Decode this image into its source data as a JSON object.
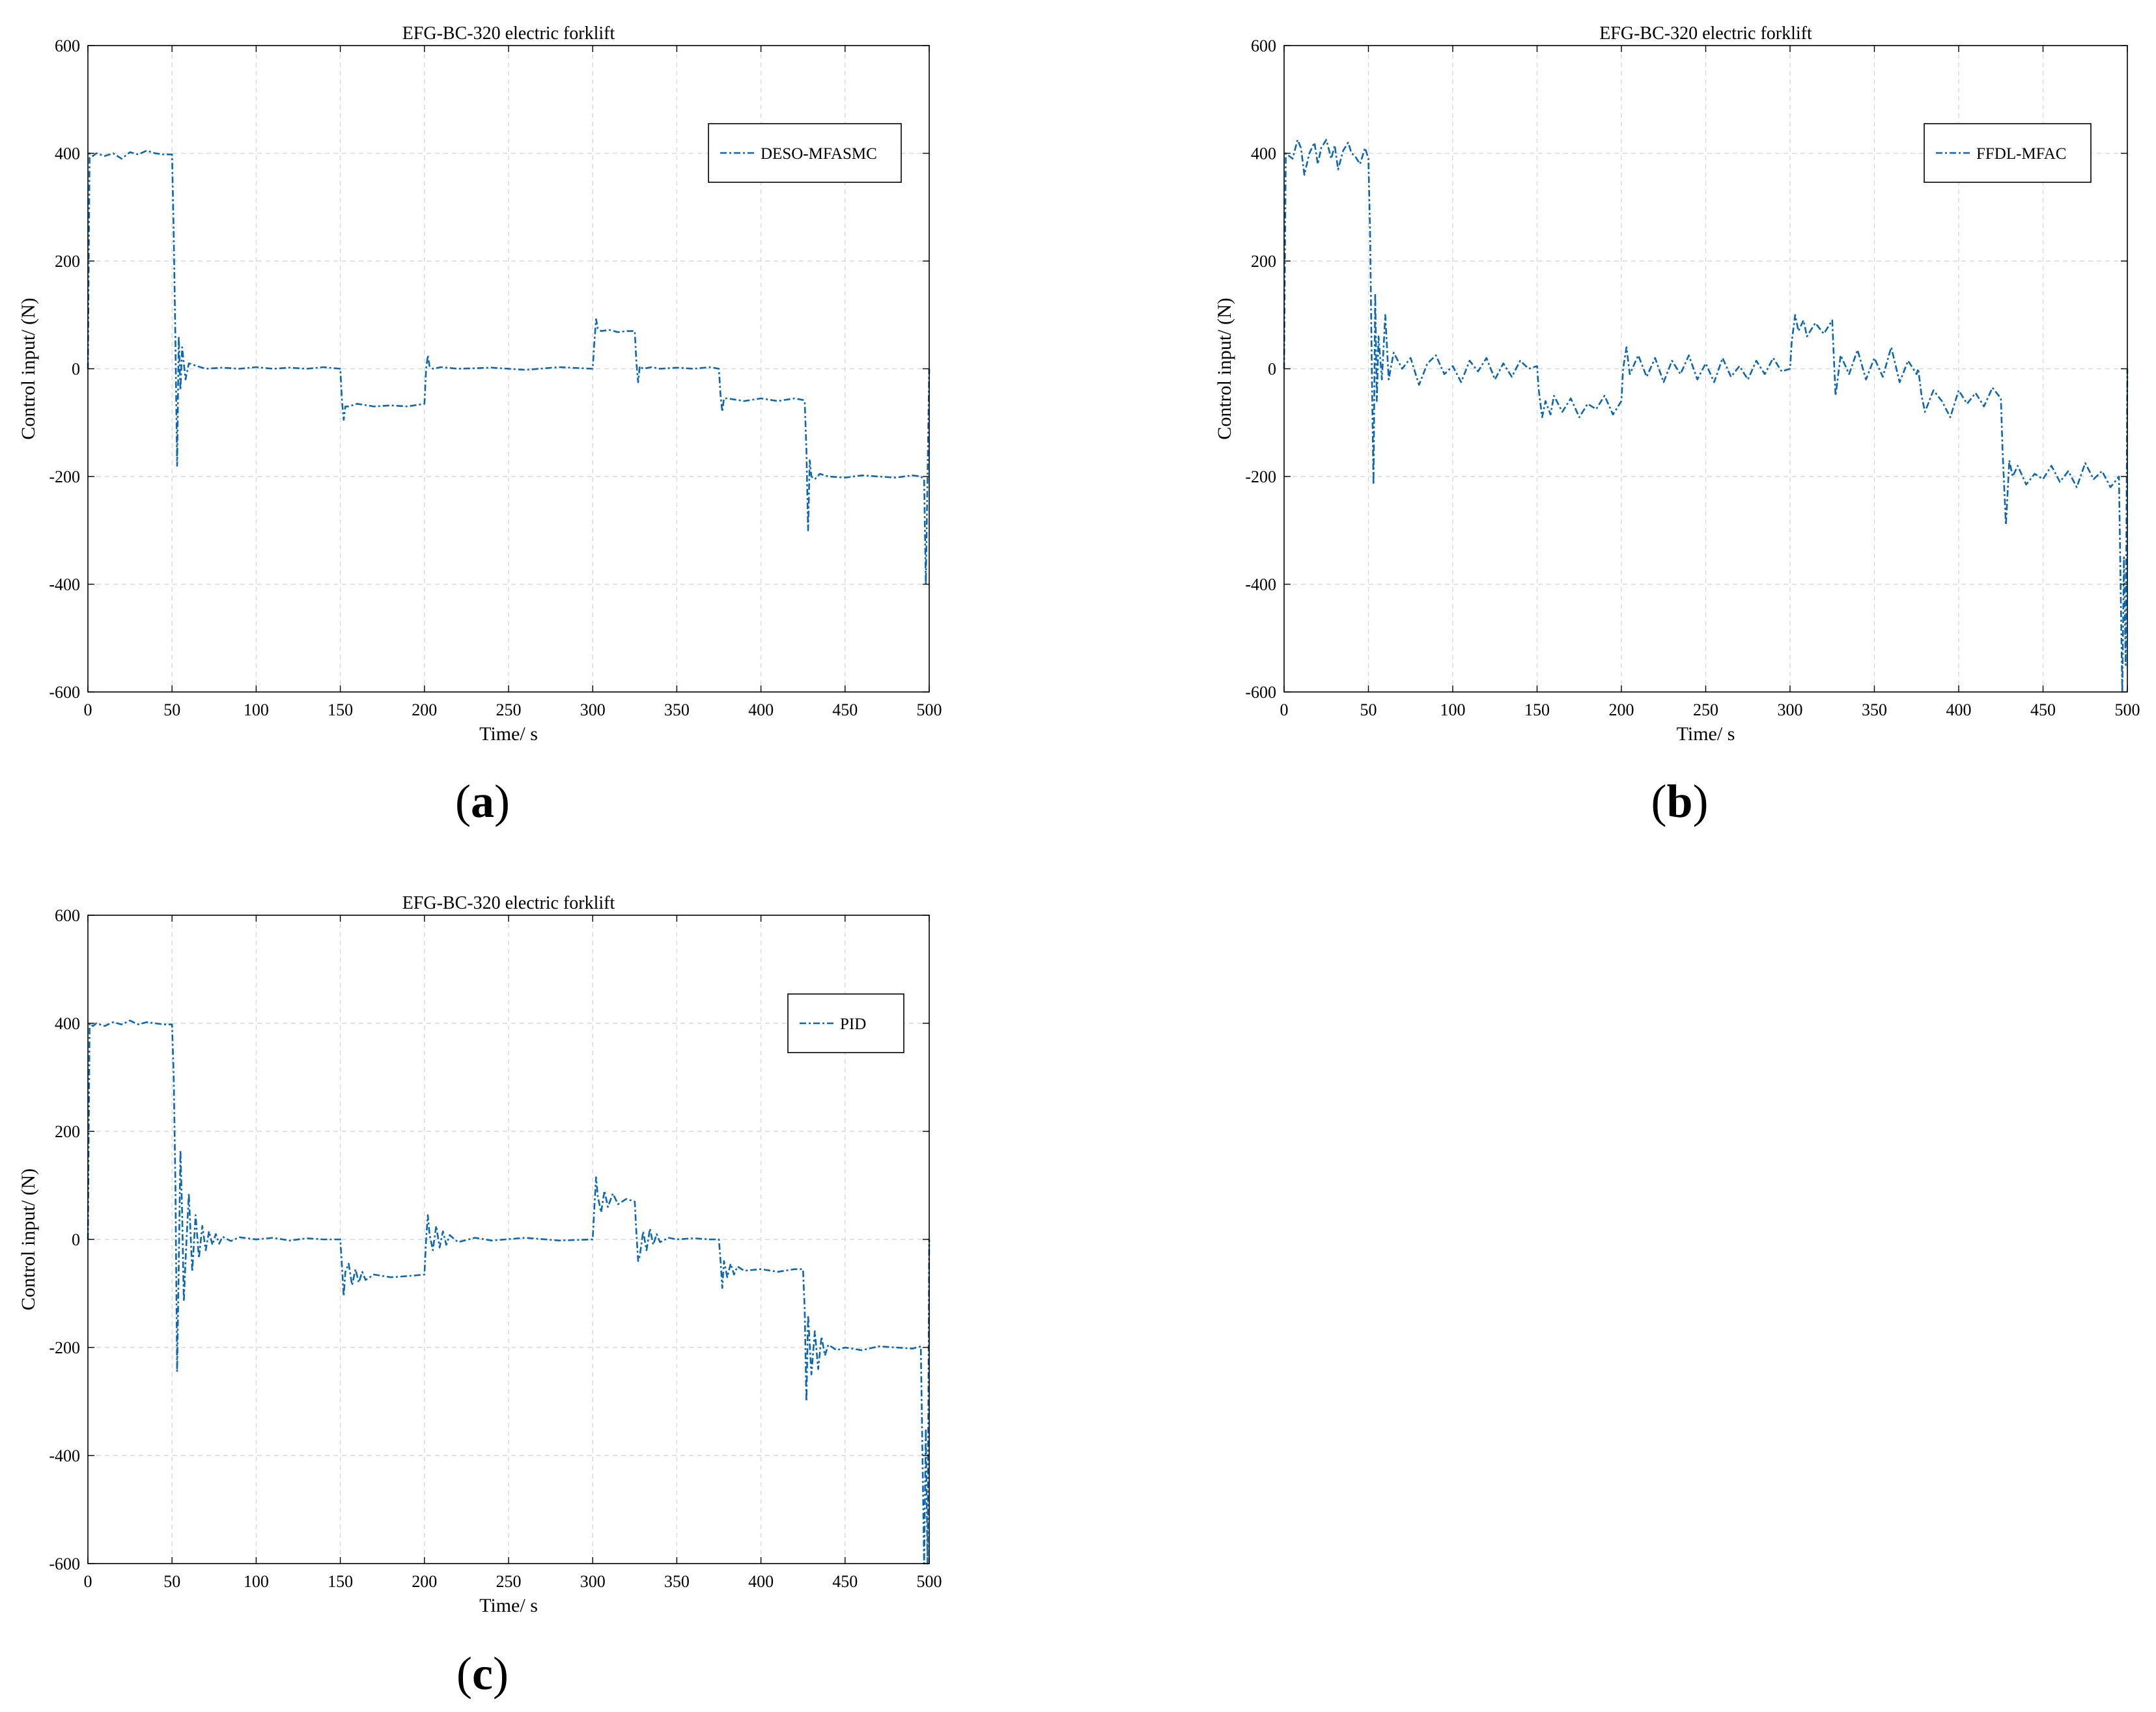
{
  "figure": {
    "line_color": "#0b67b2",
    "grid_color": "#d9d9d9"
  },
  "chart_data": [
    {
      "type": "line",
      "panel_label": "a",
      "title": "EFG-BC-320 electric forklift",
      "xlabel": "Time/ s",
      "ylabel": "Control input/ (N)",
      "xlim": [
        0,
        500
      ],
      "ylim": [
        -600,
        600
      ],
      "xticks": [
        0,
        50,
        100,
        150,
        200,
        250,
        300,
        350,
        400,
        450,
        500
      ],
      "yticks": [
        600,
        400,
        200,
        0,
        -200,
        -400,
        -600
      ],
      "grid": true,
      "legend_position": "top-right",
      "series": [
        {
          "name": "DESO-MFASMC",
          "style": "dash-dot",
          "x": [
            0,
            1,
            3,
            5,
            10,
            15,
            20,
            25,
            30,
            35,
            40,
            45,
            50,
            51,
            52,
            53,
            54,
            55,
            56,
            58,
            60,
            65,
            70,
            80,
            90,
            100,
            110,
            120,
            130,
            140,
            150,
            151,
            152,
            153,
            155,
            160,
            170,
            180,
            190,
            200,
            201,
            202,
            203,
            205,
            210,
            220,
            240,
            260,
            280,
            300,
            301,
            302,
            303,
            305,
            310,
            315,
            320,
            325,
            326,
            327,
            328,
            330,
            335,
            340,
            350,
            360,
            370,
            375,
            376,
            377,
            378,
            380,
            390,
            400,
            410,
            420,
            425,
            426,
            427,
            428,
            429,
            430,
            432,
            435,
            440,
            450,
            460,
            470,
            480,
            490,
            495,
            497,
            498,
            499,
            500
          ],
          "values": [
            0,
            400,
            395,
            400,
            395,
            400,
            390,
            402,
            398,
            405,
            400,
            398,
            398,
            250,
            50,
            -180,
            60,
            -40,
            40,
            -20,
            10,
            5,
            0,
            2,
            0,
            3,
            0,
            2,
            0,
            3,
            0,
            -60,
            -95,
            -70,
            -70,
            -65,
            -70,
            -68,
            -70,
            -65,
            0,
            25,
            5,
            0,
            3,
            0,
            2,
            -2,
            3,
            0,
            50,
            92,
            75,
            70,
            72,
            68,
            70,
            70,
            10,
            -25,
            5,
            0,
            3,
            0,
            2,
            0,
            3,
            0,
            -50,
            -80,
            -55,
            -55,
            -60,
            -55,
            -60,
            -55,
            -58,
            -60,
            -150,
            -300,
            -170,
            -200,
            -205,
            -195,
            -200,
            -202,
            -198,
            -200,
            -202,
            -198,
            -200,
            -205,
            -400,
            -200,
            0
          ]
        }
      ]
    },
    {
      "type": "line",
      "panel_label": "b",
      "title": "EFG-BC-320 electric forklift",
      "xlabel": "Time/ s",
      "ylabel": "Control input/ (N)",
      "xlim": [
        0,
        500
      ],
      "ylim": [
        -600,
        600
      ],
      "xticks": [
        0,
        50,
        100,
        150,
        200,
        250,
        300,
        350,
        400,
        450,
        500
      ],
      "yticks": [
        600,
        400,
        200,
        0,
        -200,
        -400,
        -600
      ],
      "grid": true,
      "legend_position": "top-right",
      "series": [
        {
          "name": "FFDL-MFAC",
          "style": "dash-dot",
          "x": [
            0,
            1,
            3,
            5,
            8,
            10,
            12,
            15,
            18,
            20,
            22,
            25,
            28,
            30,
            32,
            35,
            38,
            40,
            42,
            45,
            48,
            50,
            51,
            52,
            53,
            54,
            55,
            56,
            58,
            60,
            62,
            65,
            70,
            75,
            80,
            85,
            90,
            95,
            100,
            105,
            110,
            115,
            120,
            125,
            130,
            135,
            140,
            145,
            150,
            151,
            153,
            155,
            158,
            160,
            165,
            170,
            175,
            180,
            185,
            190,
            195,
            200,
            201,
            203,
            205,
            210,
            215,
            220,
            225,
            230,
            235,
            240,
            245,
            250,
            255,
            260,
            265,
            270,
            275,
            280,
            285,
            290,
            295,
            300,
            301,
            303,
            305,
            308,
            310,
            315,
            320,
            325,
            326,
            327,
            330,
            335,
            340,
            345,
            350,
            355,
            360,
            365,
            370,
            375,
            376,
            378,
            380,
            385,
            390,
            395,
            400,
            405,
            410,
            415,
            420,
            425,
            426,
            428,
            430,
            432,
            435,
            440,
            445,
            450,
            455,
            460,
            465,
            470,
            475,
            480,
            485,
            490,
            495,
            497,
            498,
            499,
            500
          ],
          "values": [
            0,
            400,
            395,
            390,
            425,
            410,
            360,
            400,
            420,
            380,
            410,
            425,
            390,
            415,
            370,
            405,
            420,
            400,
            395,
            380,
            410,
            390,
            250,
            0,
            -215,
            140,
            -60,
            60,
            -20,
            100,
            -20,
            30,
            0,
            20,
            -30,
            10,
            25,
            -10,
            5,
            -25,
            15,
            -5,
            20,
            -20,
            10,
            -15,
            15,
            0,
            5,
            -40,
            -90,
            -60,
            -85,
            -50,
            -80,
            -55,
            -90,
            -65,
            -75,
            -50,
            -85,
            -60,
            0,
            40,
            -10,
            25,
            -15,
            20,
            -25,
            15,
            -10,
            25,
            -20,
            10,
            -25,
            20,
            -15,
            5,
            -20,
            15,
            -10,
            20,
            -5,
            0,
            50,
            100,
            70,
            90,
            60,
            85,
            65,
            90,
            20,
            -50,
            25,
            -10,
            35,
            -20,
            20,
            -15,
            40,
            -25,
            15,
            -10,
            0,
            -50,
            -80,
            -40,
            -60,
            -90,
            -40,
            -65,
            -45,
            -70,
            -35,
            -55,
            -150,
            -290,
            -170,
            -200,
            -180,
            -215,
            -195,
            -205,
            -180,
            -210,
            -190,
            -220,
            -175,
            -205,
            -190,
            -220,
            -200,
            -600,
            -350,
            -550,
            0
          ]
        }
      ]
    },
    {
      "type": "line",
      "panel_label": "c",
      "title": "EFG-BC-320 electric forklift",
      "xlabel": "Time/ s",
      "ylabel": "Control input/ (N)",
      "xlim": [
        0,
        500
      ],
      "ylim": [
        -600,
        600
      ],
      "xticks": [
        0,
        50,
        100,
        150,
        200,
        250,
        300,
        350,
        400,
        450,
        500
      ],
      "yticks": [
        600,
        400,
        200,
        0,
        -200,
        -400,
        -600
      ],
      "grid": true,
      "legend_position": "top-right",
      "series": [
        {
          "name": "PID",
          "style": "dash-dot",
          "x": [
            0,
            1,
            3,
            5,
            10,
            15,
            20,
            25,
            30,
            35,
            40,
            45,
            50,
            51,
            52,
            53,
            54,
            55,
            56,
            57,
            58,
            60,
            62,
            64,
            66,
            68,
            70,
            72,
            74,
            76,
            78,
            80,
            85,
            90,
            100,
            110,
            120,
            130,
            140,
            150,
            151,
            152,
            153,
            155,
            157,
            159,
            161,
            163,
            165,
            170,
            180,
            190,
            200,
            201,
            202,
            203,
            205,
            207,
            209,
            211,
            213,
            215,
            220,
            230,
            240,
            260,
            280,
            300,
            301,
            302,
            303,
            305,
            307,
            309,
            312,
            315,
            320,
            325,
            326,
            327,
            328,
            330,
            332,
            334,
            336,
            338,
            340,
            345,
            350,
            360,
            370,
            375,
            376,
            377,
            378,
            380,
            382,
            384,
            386,
            390,
            400,
            410,
            420,
            425,
            426,
            427,
            428,
            430,
            432,
            434,
            436,
            438,
            440,
            445,
            450,
            460,
            470,
            480,
            490,
            495,
            497,
            498,
            499,
            500
          ],
          "values": [
            0,
            400,
            395,
            400,
            395,
            402,
            398,
            405,
            398,
            402,
            400,
            398,
            398,
            300,
            100,
            -245,
            -50,
            165,
            50,
            -115,
            -40,
            85,
            -60,
            45,
            -35,
            25,
            -20,
            15,
            -10,
            10,
            -8,
            5,
            -3,
            4,
            0,
            3,
            -2,
            2,
            0,
            0,
            -50,
            -105,
            -60,
            -45,
            -85,
            -55,
            -80,
            -60,
            -75,
            -65,
            -70,
            -68,
            -65,
            0,
            45,
            10,
            -20,
            25,
            -15,
            15,
            -10,
            8,
            -5,
            3,
            -2,
            3,
            -2,
            0,
            60,
            115,
            80,
            50,
            90,
            60,
            85,
            65,
            75,
            70,
            10,
            -40,
            -30,
            15,
            -20,
            20,
            -10,
            10,
            -5,
            3,
            0,
            2,
            0,
            0,
            -40,
            -90,
            -40,
            -70,
            -45,
            -65,
            -50,
            -58,
            -55,
            -60,
            -55,
            -55,
            -130,
            -300,
            -140,
            -250,
            -170,
            -240,
            -180,
            -215,
            -195,
            -205,
            -200,
            -205,
            -198,
            -200,
            -202,
            -198,
            -600,
            -350,
            -600,
            0
          ]
        }
      ]
    }
  ]
}
